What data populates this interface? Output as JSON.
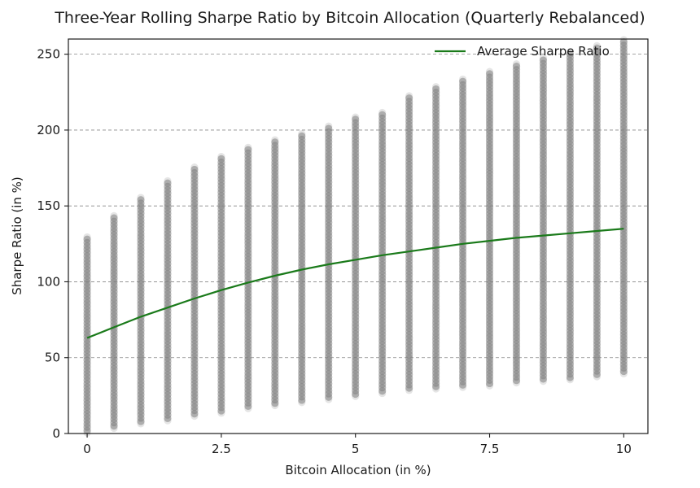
{
  "chart_data": {
    "type": "scatter",
    "title": "Three-Year Rolling Sharpe Ratio by Bitcoin Allocation (Quarterly Rebalanced)",
    "xlabel": "Bitcoin Allocation (in %)",
    "ylabel": "Sharpe Ratio (in %)",
    "xlim": [
      -0.35,
      10.45
    ],
    "ylim": [
      0,
      260
    ],
    "x_ticks": [
      0,
      2.5,
      5,
      7.5,
      10
    ],
    "x_tick_labels": [
      "0",
      "2.5",
      "5",
      "7.5",
      "10"
    ],
    "y_ticks": [
      0,
      50,
      100,
      150,
      200,
      250
    ],
    "y_tick_labels": [
      "0",
      "50",
      "100",
      "150",
      "200",
      "250"
    ],
    "grid": "horizontal-dashed",
    "legend_position": "top-right",
    "colors": {
      "scatter": "#7f7f7f",
      "line": "#1a7a1a",
      "grid": "#888888"
    },
    "scatter_ranges": [
      {
        "x": 0,
        "min": 2,
        "max": 128
      },
      {
        "x": 0.5,
        "min": 5,
        "max": 142
      },
      {
        "x": 1,
        "min": 8,
        "max": 154
      },
      {
        "x": 1.5,
        "min": 10,
        "max": 165
      },
      {
        "x": 2,
        "min": 13,
        "max": 174
      },
      {
        "x": 2.5,
        "min": 15,
        "max": 181
      },
      {
        "x": 3,
        "min": 18,
        "max": 187
      },
      {
        "x": 3.5,
        "min": 20,
        "max": 192
      },
      {
        "x": 4,
        "min": 22,
        "max": 196
      },
      {
        "x": 4.5,
        "min": 24,
        "max": 201
      },
      {
        "x": 5,
        "min": 26,
        "max": 207
      },
      {
        "x": 5.5,
        "min": 28,
        "max": 210
      },
      {
        "x": 6,
        "min": 30,
        "max": 221
      },
      {
        "x": 6.5,
        "min": 31,
        "max": 227
      },
      {
        "x": 7,
        "min": 32,
        "max": 232
      },
      {
        "x": 7.5,
        "min": 33,
        "max": 237
      },
      {
        "x": 8,
        "min": 35,
        "max": 242
      },
      {
        "x": 8.5,
        "min": 36,
        "max": 246
      },
      {
        "x": 9,
        "min": 37,
        "max": 250
      },
      {
        "x": 9.5,
        "min": 39,
        "max": 254
      },
      {
        "x": 10,
        "min": 41,
        "max": 258
      }
    ],
    "series": [
      {
        "name": "Average Sharpe Ratio",
        "type": "line",
        "x": [
          0,
          0.5,
          1,
          1.5,
          2,
          2.5,
          3,
          3.5,
          4,
          4.5,
          5,
          5.5,
          6,
          6.5,
          7,
          7.5,
          8,
          8.5,
          9,
          9.5,
          10
        ],
        "y": [
          63,
          70,
          77,
          83,
          89,
          94.5,
          99.5,
          104,
          108,
          111.5,
          114.5,
          117.5,
          120,
          122.5,
          125,
          127,
          129,
          130.5,
          132,
          133.5,
          135
        ]
      }
    ]
  }
}
